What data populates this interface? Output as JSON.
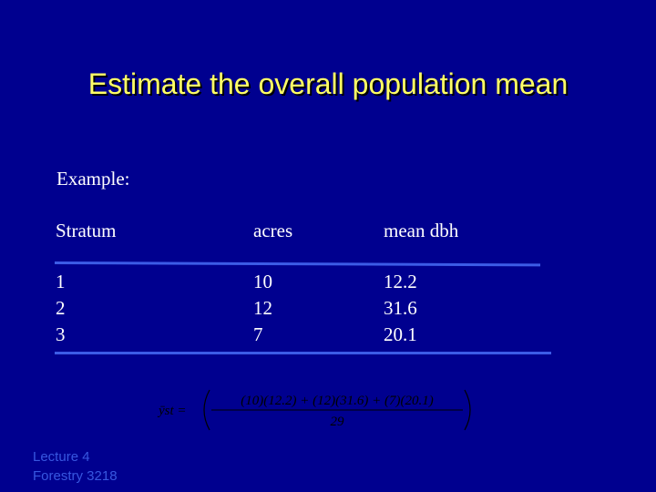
{
  "slide": {
    "title": "Estimate the overall population mean",
    "subtitle": "Example:"
  },
  "table": {
    "headers": [
      "Stratum",
      "acres",
      "mean dbh"
    ],
    "rows": [
      [
        "1",
        "10",
        "12.2"
      ],
      [
        "2",
        "12",
        "31.6"
      ],
      [
        "3",
        "7",
        "20.1"
      ]
    ]
  },
  "formula": {
    "lhs": "ȳst =",
    "numerator": "(10)(12.2) + (12)(31.6) + (7)(20.1)",
    "denominator": "29"
  },
  "footer": {
    "line1": "Lecture 4",
    "line2": "Forestry 3218"
  },
  "colors": {
    "background": "#00008f",
    "title": "#ffff66",
    "rule": "#3c5ce6",
    "footer": "#3757e0"
  }
}
